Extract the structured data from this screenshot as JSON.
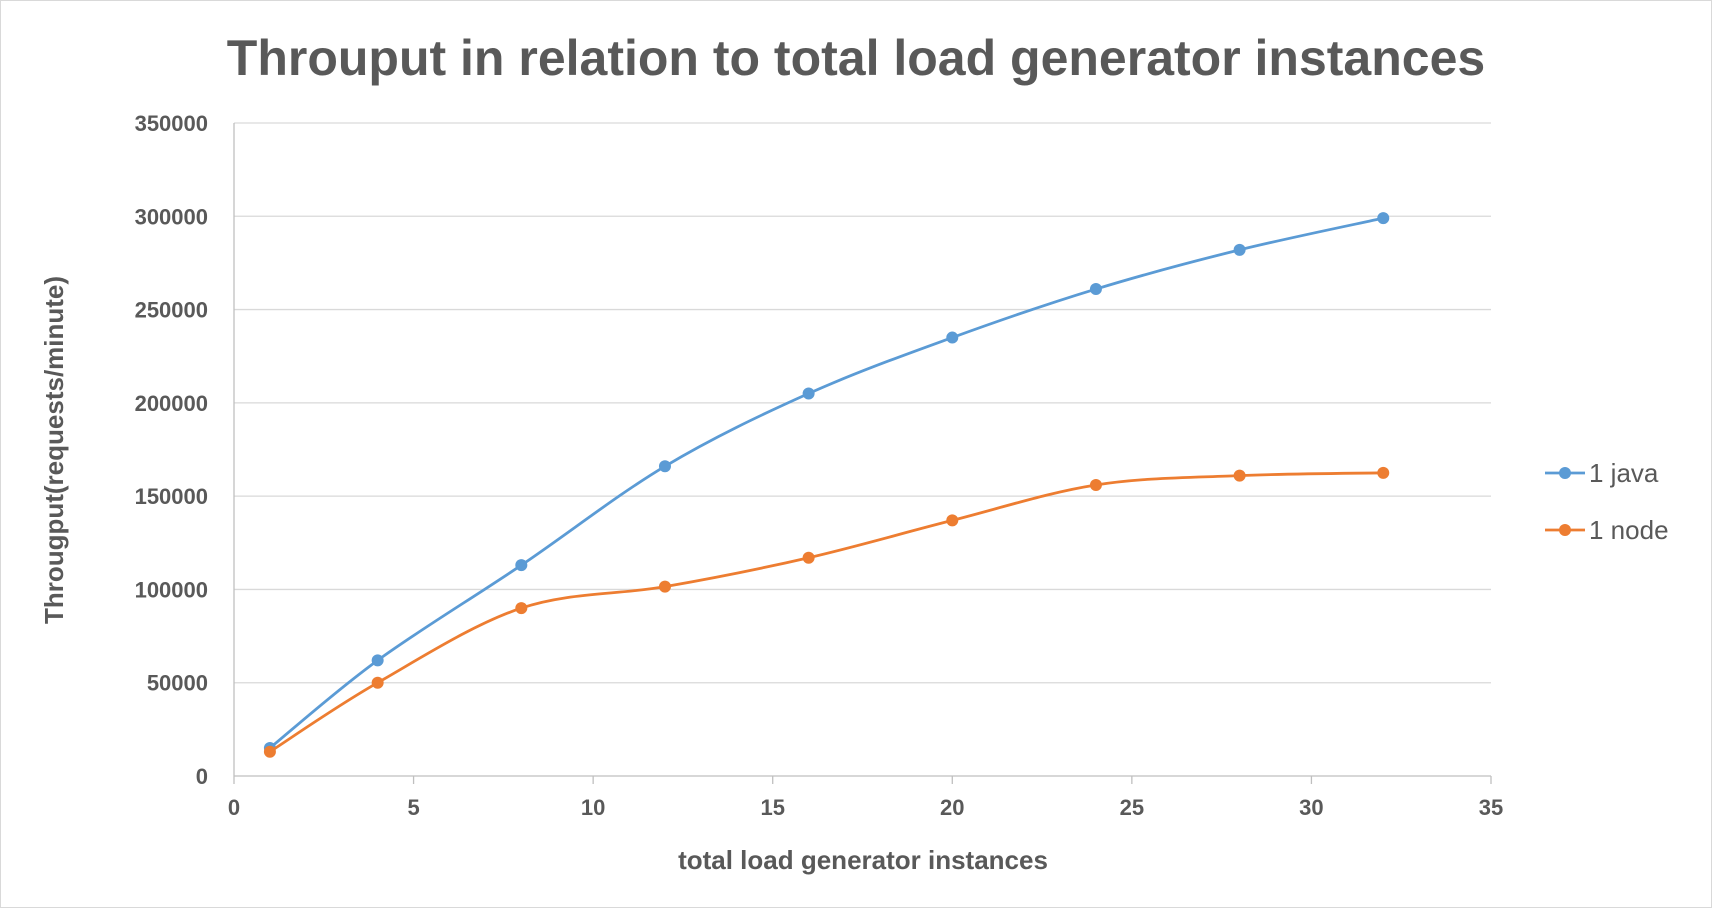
{
  "chart_data": {
    "type": "line",
    "title": "Throuput in relation to total load generator instances",
    "xlabel": "total load generator instances",
    "ylabel": "Througput(requests/minute)",
    "xlim": [
      0,
      35
    ],
    "ylim": [
      0,
      350000
    ],
    "x_ticks": [
      0,
      5,
      10,
      15,
      20,
      25,
      30,
      35
    ],
    "y_ticks": [
      0,
      50000,
      100000,
      150000,
      200000,
      250000,
      300000,
      350000
    ],
    "grid": "horizontal",
    "smooth": true,
    "legend_position": "right",
    "x": [
      1,
      4,
      8,
      12,
      16,
      20,
      24,
      28,
      32
    ],
    "series": [
      {
        "name": "1 java",
        "color": "#5b9bd5",
        "values": [
          15000,
          62000,
          113000,
          166000,
          205000,
          235000,
          261000,
          282000,
          299000
        ]
      },
      {
        "name": "1 node",
        "color": "#ed7d31",
        "values": [
          13000,
          50000,
          90000,
          101500,
          117000,
          137000,
          156000,
          161000,
          162500
        ]
      }
    ]
  }
}
